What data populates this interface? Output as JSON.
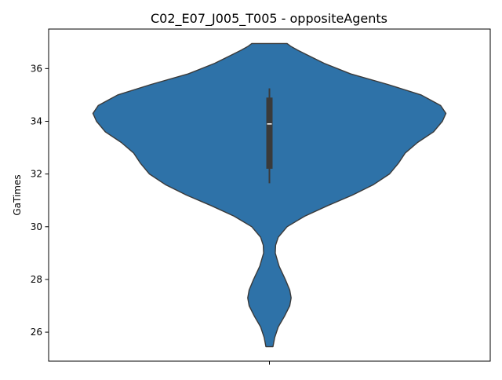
{
  "chart_data": {
    "type": "violin",
    "title": "C02_E07_J005_T005 - oppositeAgents",
    "xlabel": "",
    "ylabel": "GaTimes",
    "ylim": [
      24.9,
      37.5
    ],
    "yticks": [
      26,
      28,
      30,
      32,
      34,
      36
    ],
    "xticks": [
      ""
    ],
    "grid": false,
    "colors": {
      "body": "#2e72a8",
      "edge": "#3a3a3a",
      "box": "#3a3a3a",
      "median": "#ffffff"
    },
    "series": [
      {
        "box": {
          "whisker_low": 31.65,
          "q1": 32.2,
          "median": 33.9,
          "q3": 34.9,
          "whisker_high": 35.25
        },
        "density": [
          {
            "y": 25.45,
            "w": 0.02
          },
          {
            "y": 25.8,
            "w": 0.03
          },
          {
            "y": 26.2,
            "w": 0.05
          },
          {
            "y": 26.6,
            "w": 0.085
          },
          {
            "y": 27.0,
            "w": 0.115
          },
          {
            "y": 27.3,
            "w": 0.123
          },
          {
            "y": 27.6,
            "w": 0.115
          },
          {
            "y": 28.0,
            "w": 0.09
          },
          {
            "y": 28.5,
            "w": 0.055
          },
          {
            "y": 29.0,
            "w": 0.033
          },
          {
            "y": 29.3,
            "w": 0.035
          },
          {
            "y": 29.6,
            "w": 0.05
          },
          {
            "y": 30.0,
            "w": 0.1
          },
          {
            "y": 30.4,
            "w": 0.2
          },
          {
            "y": 30.8,
            "w": 0.33
          },
          {
            "y": 31.2,
            "w": 0.47
          },
          {
            "y": 31.6,
            "w": 0.59
          },
          {
            "y": 32.0,
            "w": 0.68
          },
          {
            "y": 32.4,
            "w": 0.73
          },
          {
            "y": 32.8,
            "w": 0.77
          },
          {
            "y": 33.2,
            "w": 0.84
          },
          {
            "y": 33.6,
            "w": 0.93
          },
          {
            "y": 34.0,
            "w": 0.98
          },
          {
            "y": 34.3,
            "w": 1.0
          },
          {
            "y": 34.6,
            "w": 0.97
          },
          {
            "y": 35.0,
            "w": 0.86
          },
          {
            "y": 35.4,
            "w": 0.67
          },
          {
            "y": 35.8,
            "w": 0.46
          },
          {
            "y": 36.2,
            "w": 0.31
          },
          {
            "y": 36.5,
            "w": 0.22
          },
          {
            "y": 36.7,
            "w": 0.16
          },
          {
            "y": 36.85,
            "w": 0.12
          },
          {
            "y": 36.95,
            "w": 0.1
          }
        ]
      }
    ]
  }
}
